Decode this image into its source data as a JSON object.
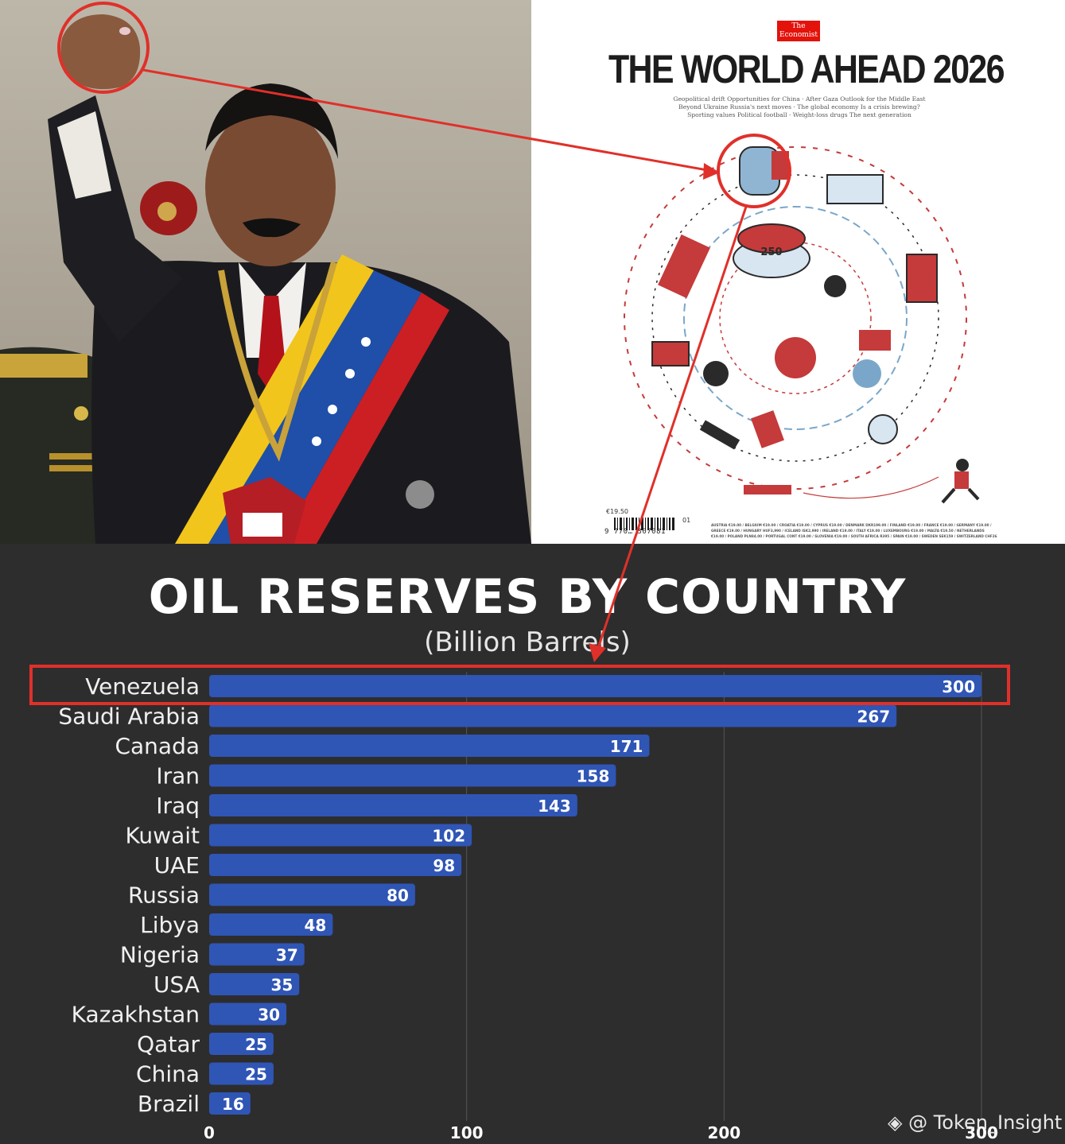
{
  "cover": {
    "logo_line1": "The",
    "logo_line2": "Economist",
    "title": "THE WORLD AHEAD 2026",
    "teaser_line1": "Geopolitical drift Opportunities for China · After Gaza Outlook for the Middle East",
    "teaser_line2": "Beyond Ukraine Russia's next moves · The global economy Is a crisis brewing?",
    "teaser_line3": "Sporting values Political football · Weight-loss drugs The next generation",
    "cake_number": "250",
    "price": "€19.50",
    "issue_number": "01",
    "barcode_digits": "9 770…  307081",
    "prices_list": "AUSTRIA €19.00 / BELGIUM €19.00 / CROATIA €19.00 / CYPRUS €19.00 / DENMARK DKR199.00 / FINLAND €19.00 / FRANCE €19.00 / GERMANY €19.00 / GREECE €19.00 / HUNGARY HUF3,990 / ICELAND ISK2,990 / IRELAND €19.00 / ITALY €19.00 / LUXEMBOURG €19.00 / MALTA €19.50 / NETHERLANDS €19.00 / POLAND PLN84.00 / PORTUGAL CONT €19.00 / SLOVENIA €19.00 / SOUTH AFRICA R395 / SPAIN €19.00 / SWEDEN SEK159 / SWITZERLAND CHF26"
  },
  "watermark": "◈ @ Token_Insight",
  "colors": {
    "bar": "#2f55b5",
    "highlight": "#e0302a",
    "background": "#2d2d2d"
  },
  "chart_data": {
    "type": "bar",
    "orientation": "horizontal",
    "title": "OIL RESERVES BY COUNTRY",
    "subtitle": "(Billion Barrels)",
    "categories": [
      "Venezuela",
      "Saudi Arabia",
      "Canada",
      "Iran",
      "Iraq",
      "Kuwait",
      "UAE",
      "Russia",
      "Libya",
      "Nigeria",
      "USA",
      "Kazakhstan",
      "Qatar",
      "China",
      "Brazil"
    ],
    "values": [
      300,
      267,
      171,
      158,
      143,
      102,
      98,
      80,
      48,
      37,
      35,
      30,
      25,
      25,
      16
    ],
    "value_labels": [
      "300",
      "267",
      "171",
      "158",
      "143",
      "102",
      "98",
      "80",
      "48",
      "37",
      "35",
      "30",
      "25",
      "25",
      "16"
    ],
    "xticks": [
      "0",
      "100",
      "200",
      "300"
    ],
    "xtick_values": [
      0,
      100,
      200,
      300
    ],
    "xlim": [
      0,
      300
    ],
    "grid": true,
    "highlighted_category": "Venezuela"
  }
}
